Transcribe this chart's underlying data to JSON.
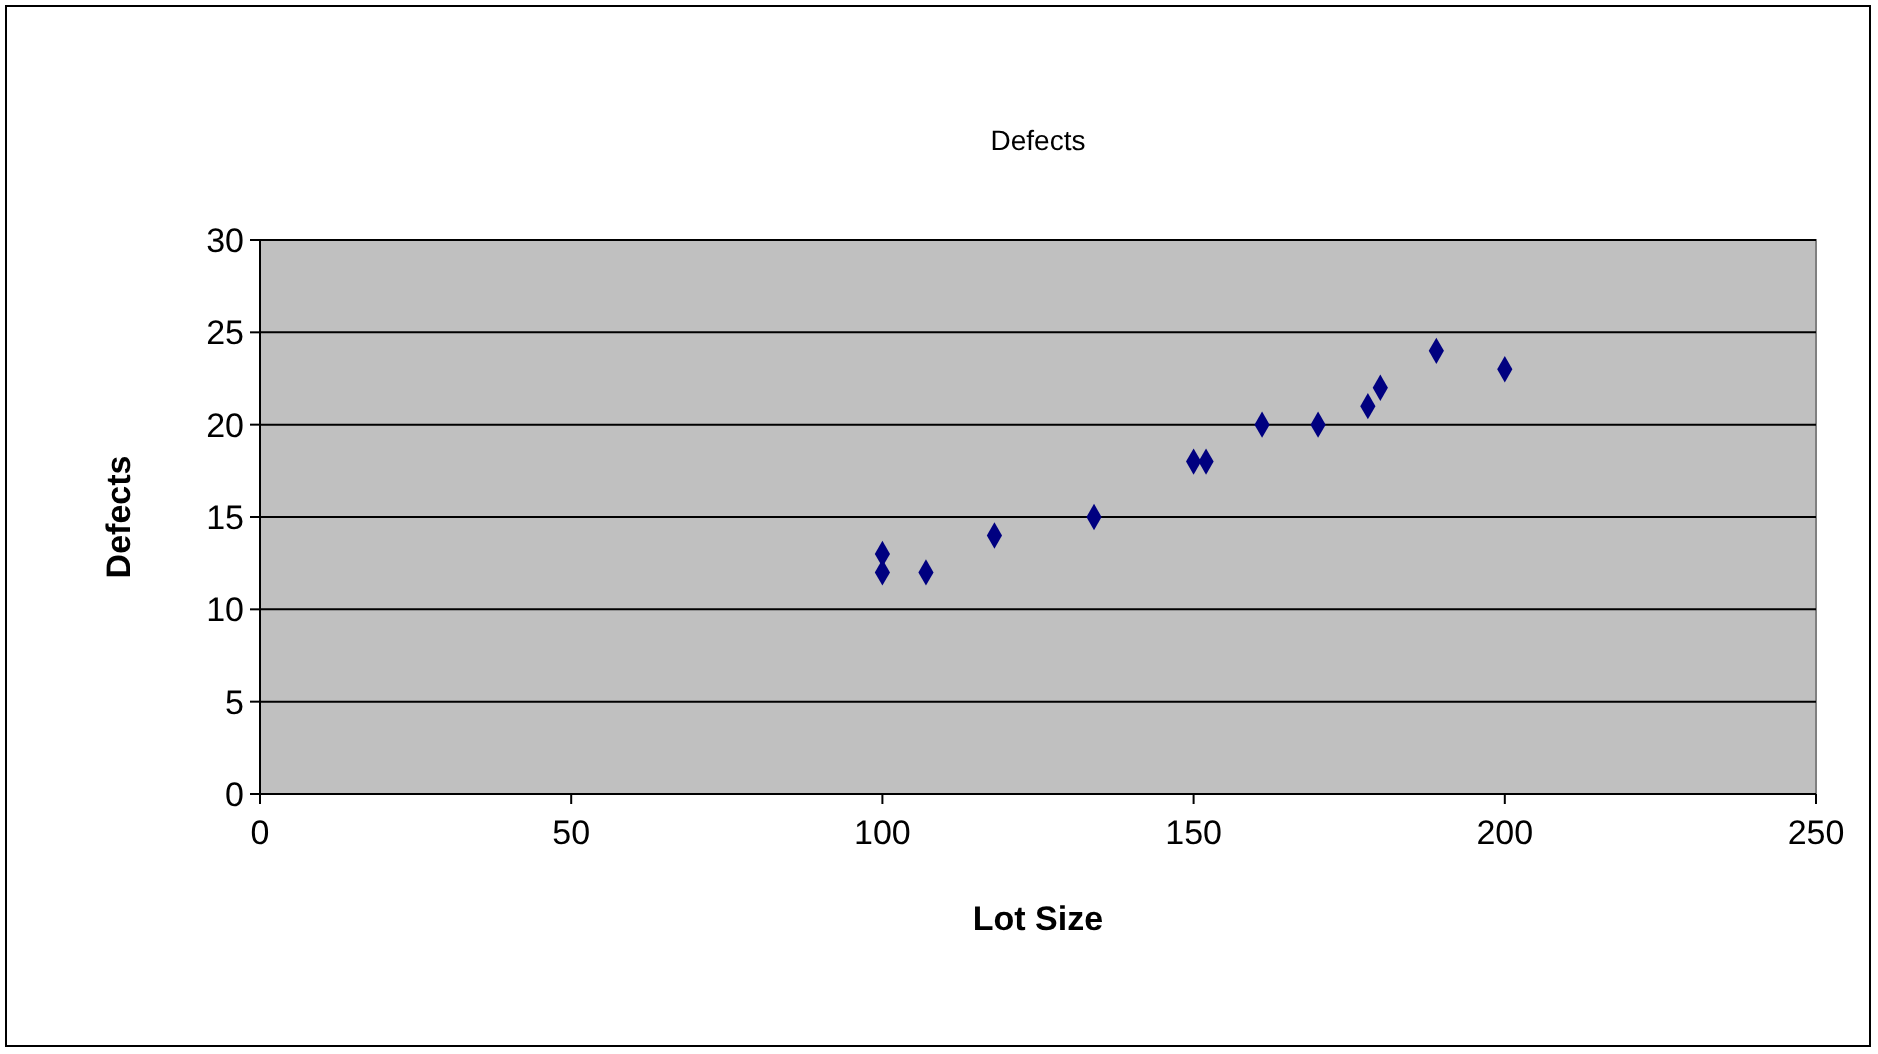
{
  "chart_data": {
    "type": "scatter",
    "title": "Defects",
    "xlabel": "Lot Size",
    "ylabel": "Defects",
    "x": [
      100,
      100,
      107,
      118,
      134,
      150,
      152,
      161,
      170,
      178,
      180,
      189,
      200
    ],
    "values": [
      13,
      12,
      12,
      14,
      15,
      18,
      18,
      20,
      20,
      21,
      22,
      24,
      23
    ],
    "color": "#000080",
    "marker": "diamond",
    "xlim": [
      0,
      250
    ],
    "xticks": [
      0,
      50,
      100,
      150,
      200,
      250
    ],
    "ylim": [
      0,
      30
    ],
    "yticks": [
      0,
      5,
      10,
      15,
      20,
      25,
      30
    ],
    "grid": "y"
  }
}
